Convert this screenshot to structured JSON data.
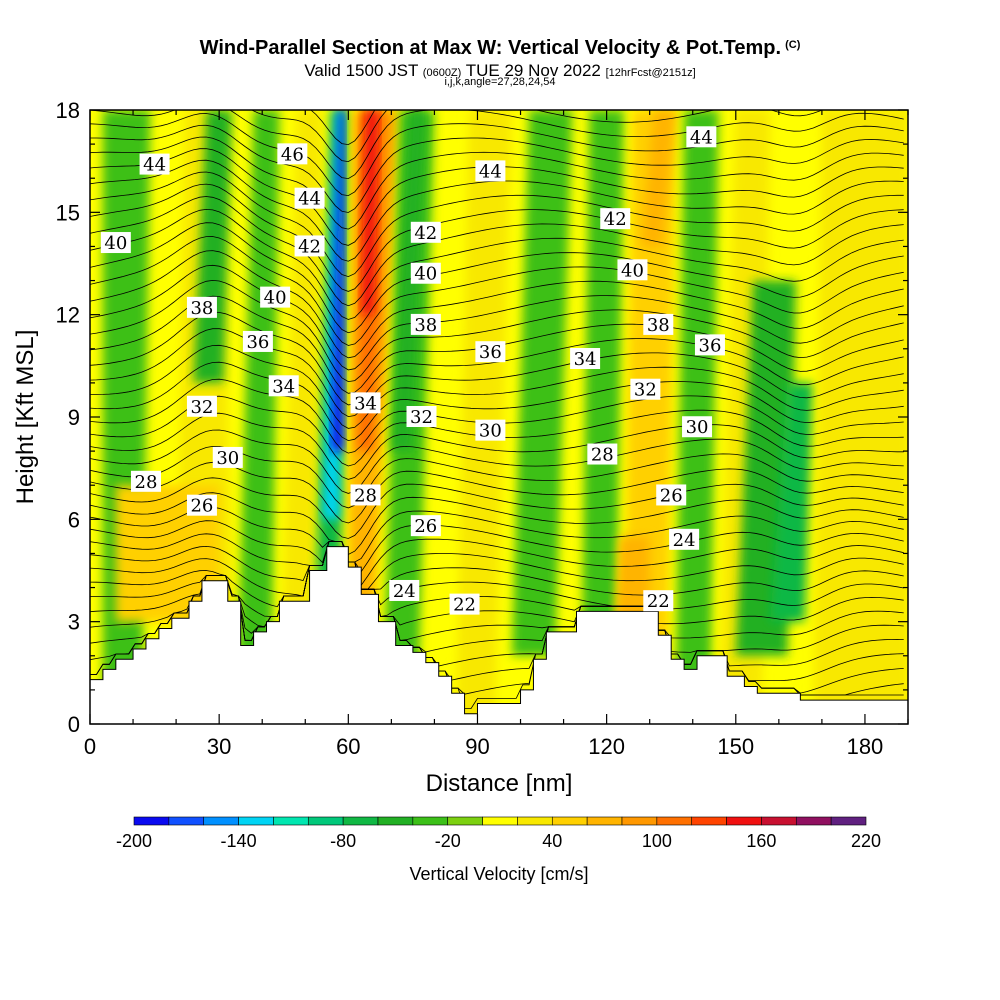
{
  "header": {
    "title": "Wind-Parallel Section at Max W: Vertical Velocity & Pot.Temp.",
    "copyright_mark": "(C)",
    "valid_prefix": "Valid 1500 JST",
    "valid_utc": "(0600Z)",
    "valid_date": "TUE 29 Nov 2022",
    "forecast_info": "[12hrFcst@2151z]",
    "indices": "i,j,k,angle=27,28,24,54"
  },
  "chart_data": {
    "type": "heatmap",
    "title": "Wind-Parallel Section at Max W: Vertical Velocity & Pot.Temp.",
    "xlabel": "Distance [nm]",
    "ylabel": "Height [Kft MSL]",
    "xlim": [
      0,
      190
    ],
    "ylim": [
      0,
      18
    ],
    "x_ticks": [
      0,
      30,
      60,
      90,
      120,
      150,
      180
    ],
    "y_ticks": [
      0,
      3,
      6,
      9,
      12,
      15,
      18
    ],
    "colorbar": {
      "label": "Vertical Velocity [cm/s]",
      "ticks": [
        -200,
        -140,
        -80,
        -20,
        40,
        100,
        160,
        220
      ],
      "bounds": [
        -200,
        -180,
        -160,
        -140,
        -120,
        -100,
        -80,
        -60,
        -40,
        -20,
        0,
        20,
        40,
        60,
        80,
        100,
        120,
        140,
        160,
        180,
        200,
        220
      ],
      "colors": [
        "#0a0af0",
        "#1050ff",
        "#0090ff",
        "#00d4f4",
        "#00e6b0",
        "#00c87a",
        "#10b844",
        "#22b024",
        "#3cc018",
        "#7cd010",
        "#ffff00",
        "#f8e800",
        "#ffd000",
        "#ffb400",
        "#ff9800",
        "#ff7000",
        "#ff4400",
        "#f01010",
        "#c81030",
        "#901060",
        "#602080"
      ]
    },
    "terrain_profile": {
      "x": [
        0,
        3,
        3,
        6,
        6,
        10,
        10,
        13,
        13,
        16,
        16,
        19,
        19,
        23,
        23,
        26,
        26,
        32,
        32,
        35,
        35,
        38,
        38,
        41,
        41,
        44,
        44,
        51,
        51,
        55,
        55,
        60,
        60,
        63,
        63,
        67,
        67,
        71,
        71,
        75,
        75,
        78,
        78,
        81,
        81,
        84,
        84,
        87,
        87,
        90,
        90,
        100,
        100,
        103,
        103,
        106,
        106,
        113,
        113,
        132,
        132,
        135,
        135,
        138,
        138,
        141,
        141,
        148,
        148,
        152,
        152,
        155,
        155,
        165,
        165,
        190
      ],
      "y": [
        1.3,
        1.3,
        1.6,
        1.6,
        1.9,
        1.9,
        2.2,
        2.2,
        2.5,
        2.5,
        2.8,
        2.8,
        3.1,
        3.1,
        3.6,
        3.6,
        4.2,
        4.2,
        3.6,
        3.6,
        2.3,
        2.3,
        2.7,
        2.7,
        3.0,
        3.0,
        3.6,
        3.6,
        4.5,
        4.5,
        5.2,
        5.2,
        4.6,
        4.6,
        3.8,
        3.8,
        3.0,
        3.0,
        2.3,
        2.3,
        2.1,
        2.1,
        1.8,
        1.8,
        1.4,
        1.4,
        0.9,
        0.9,
        0.3,
        0.3,
        0.6,
        0.6,
        1.0,
        1.0,
        1.9,
        1.9,
        2.7,
        2.7,
        3.3,
        3.3,
        2.6,
        2.6,
        1.9,
        1.9,
        1.6,
        1.6,
        2.0,
        2.0,
        1.4,
        1.4,
        1.1,
        1.1,
        0.9,
        0.9,
        0.7,
        0.7
      ]
    },
    "potential_temperature_labels": [
      {
        "x": 15,
        "y": 16.4,
        "text": "44"
      },
      {
        "x": 6,
        "y": 14.1,
        "text": "40"
      },
      {
        "x": 26,
        "y": 12.2,
        "text": "38"
      },
      {
        "x": 47,
        "y": 16.7,
        "text": "46"
      },
      {
        "x": 51,
        "y": 15.4,
        "text": "44"
      },
      {
        "x": 51,
        "y": 14.0,
        "text": "42"
      },
      {
        "x": 43,
        "y": 12.5,
        "text": "40"
      },
      {
        "x": 39,
        "y": 11.2,
        "text": "36"
      },
      {
        "x": 45,
        "y": 9.9,
        "text": "34"
      },
      {
        "x": 26,
        "y": 9.3,
        "text": "32"
      },
      {
        "x": 32,
        "y": 7.8,
        "text": "30"
      },
      {
        "x": 13,
        "y": 7.1,
        "text": "28"
      },
      {
        "x": 26,
        "y": 6.4,
        "text": "26"
      },
      {
        "x": 64,
        "y": 9.4,
        "text": "34"
      },
      {
        "x": 64,
        "y": 6.7,
        "text": "28"
      },
      {
        "x": 78,
        "y": 14.4,
        "text": "42"
      },
      {
        "x": 78,
        "y": 13.2,
        "text": "40"
      },
      {
        "x": 78,
        "y": 11.7,
        "text": "38"
      },
      {
        "x": 77,
        "y": 9.0,
        "text": "32"
      },
      {
        "x": 78,
        "y": 5.8,
        "text": "26"
      },
      {
        "x": 73,
        "y": 3.9,
        "text": "24"
      },
      {
        "x": 87,
        "y": 3.5,
        "text": "22"
      },
      {
        "x": 93,
        "y": 16.2,
        "text": "44"
      },
      {
        "x": 93,
        "y": 10.9,
        "text": "36"
      },
      {
        "x": 93,
        "y": 8.6,
        "text": "30"
      },
      {
        "x": 115,
        "y": 10.7,
        "text": "34"
      },
      {
        "x": 119,
        "y": 7.9,
        "text": "28"
      },
      {
        "x": 122,
        "y": 14.8,
        "text": "42"
      },
      {
        "x": 126,
        "y": 13.3,
        "text": "40"
      },
      {
        "x": 129,
        "y": 9.8,
        "text": "32"
      },
      {
        "x": 132,
        "y": 11.7,
        "text": "38"
      },
      {
        "x": 132,
        "y": 3.6,
        "text": "22"
      },
      {
        "x": 135,
        "y": 6.7,
        "text": "26"
      },
      {
        "x": 138,
        "y": 5.4,
        "text": "24"
      },
      {
        "x": 141,
        "y": 8.7,
        "text": "30"
      },
      {
        "x": 144,
        "y": 11.1,
        "text": "36"
      },
      {
        "x": 142,
        "y": 17.2,
        "text": "44"
      }
    ]
  }
}
